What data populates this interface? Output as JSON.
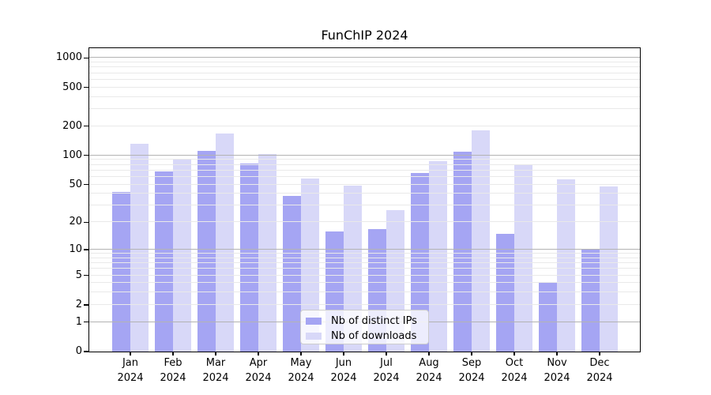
{
  "title": "FunChIP 2024",
  "chart_data": {
    "type": "bar",
    "title": "FunChIP 2024",
    "categories": [
      "Jan",
      "Feb",
      "Mar",
      "Apr",
      "May",
      "Jun",
      "Jul",
      "Aug",
      "Sep",
      "Oct",
      "Nov",
      "Dec"
    ],
    "category_year": "2024",
    "series": [
      {
        "name": "Nb of distinct IPs",
        "color": "#a5a5f3",
        "values": [
          42,
          68,
          111,
          82,
          38,
          16,
          17,
          66,
          110,
          15,
          4,
          10
        ]
      },
      {
        "name": "Nb of downloads",
        "color": "#d8d8f8",
        "values": [
          133,
          90,
          168,
          103,
          58,
          49,
          27,
          87,
          180,
          79,
          57,
          48
        ]
      }
    ],
    "y_scale": "log1p",
    "y_ticks": [
      0,
      1,
      2,
      5,
      10,
      20,
      50,
      100,
      200,
      500,
      1000
    ],
    "ylim": [
      0,
      1258
    ],
    "grid": {
      "major_at": [
        1,
        10,
        100,
        1000
      ],
      "minor_multiples": [
        2,
        3,
        4,
        5,
        6,
        7,
        8,
        9
      ],
      "major_color": "#b3b3b3",
      "minor_color": "#e9e9e9"
    },
    "legend_position": "bottom-center"
  }
}
